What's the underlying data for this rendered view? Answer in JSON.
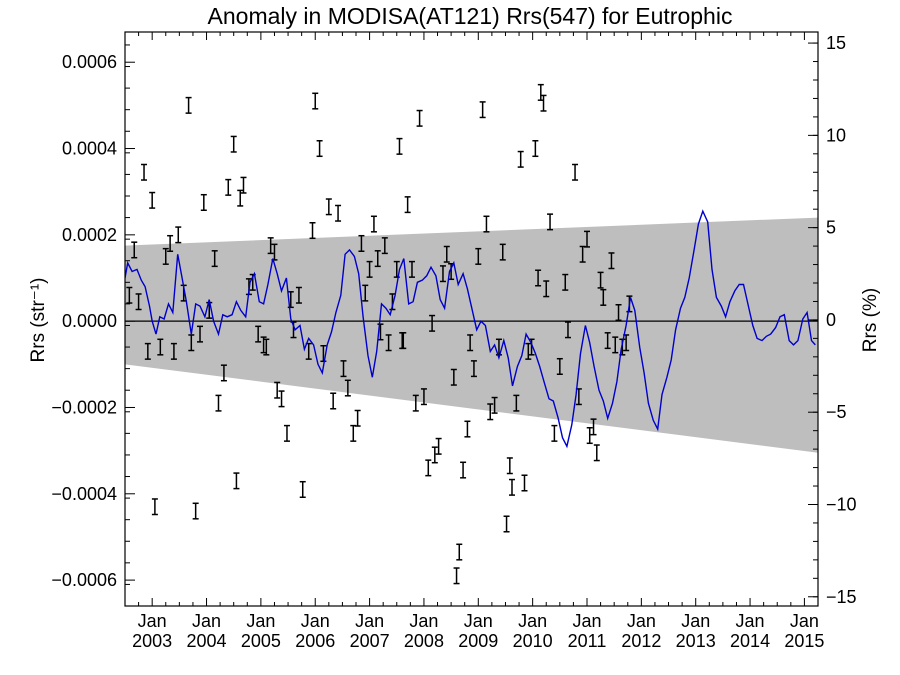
{
  "chart_data": {
    "type": "scatter",
    "title": "Anomaly in MODISA(AT121) Rrs(547) for Eutrophic",
    "ylabel_left": "Rrs (str⁻¹)",
    "ylabel_right": "Rrs (%)",
    "xlabel": "",
    "xlim": [
      2002.5,
      2015.25
    ],
    "ylim": [
      -0.00066,
      0.00067
    ],
    "ylim_right": [
      -15.5,
      15.6
    ],
    "grid": false,
    "legend": "none",
    "x_ticks": [
      {
        "x": 2003,
        "month": "Jan",
        "year": "2003"
      },
      {
        "x": 2004,
        "month": "Jan",
        "year": "2004"
      },
      {
        "x": 2005,
        "month": "Jan",
        "year": "2005"
      },
      {
        "x": 2006,
        "month": "Jan",
        "year": "2006"
      },
      {
        "x": 2007,
        "month": "Jan",
        "year": "2007"
      },
      {
        "x": 2008,
        "month": "Jan",
        "year": "2008"
      },
      {
        "x": 2009,
        "month": "Jan",
        "year": "2009"
      },
      {
        "x": 2010,
        "month": "Jan",
        "year": "2010"
      },
      {
        "x": 2011,
        "month": "Jan",
        "year": "2011"
      },
      {
        "x": 2012,
        "month": "Jan",
        "year": "2012"
      },
      {
        "x": 2013,
        "month": "Jan",
        "year": "2013"
      },
      {
        "x": 2014,
        "month": "Jan",
        "year": "2014"
      },
      {
        "x": 2015,
        "month": "Jan",
        "year": "2015"
      }
    ],
    "y_ticks_left": [
      {
        "v": 0.0006,
        "label": "0.0006"
      },
      {
        "v": 0.0004,
        "label": "0.0004"
      },
      {
        "v": 0.0002,
        "label": "0.0002"
      },
      {
        "v": 0.0,
        "label": "0.0000"
      },
      {
        "v": -0.0002,
        "label": "−0.0002"
      },
      {
        "v": -0.0004,
        "label": "−0.0004"
      },
      {
        "v": -0.0006,
        "label": "−0.0006"
      }
    ],
    "y_ticks_right": [
      {
        "v": 15,
        "label": "15"
      },
      {
        "v": 10,
        "label": "10"
      },
      {
        "v": 5,
        "label": "5"
      },
      {
        "v": 0,
        "label": "0"
      },
      {
        "v": -5,
        "label": "−5"
      },
      {
        "v": -10,
        "label": "−10"
      },
      {
        "v": -15,
        "label": "−15"
      }
    ],
    "band": {
      "x": [
        2002.5,
        2015.25
      ],
      "upper": [
        0.000175,
        0.00024
      ],
      "lower": [
        -0.0001,
        -0.000305
      ],
      "color": "#bebebe"
    },
    "zero_line": {
      "y": 0.0,
      "color": "#000000"
    },
    "error_bars": {
      "color": "#000000",
      "half_height": 1.8e-05,
      "points": [
        {
          "x": 2002.58,
          "y": 6e-05
        },
        {
          "x": 2002.67,
          "y": 0.000165
        },
        {
          "x": 2002.75,
          "y": 4.5e-05
        },
        {
          "x": 2002.85,
          "y": 0.000345
        },
        {
          "x": 2002.92,
          "y": -7e-05
        },
        {
          "x": 2003.0,
          "y": 0.00028
        },
        {
          "x": 2003.05,
          "y": -0.00043
        },
        {
          "x": 2003.15,
          "y": -6e-05
        },
        {
          "x": 2003.25,
          "y": 0.00015
        },
        {
          "x": 2003.33,
          "y": 0.00018
        },
        {
          "x": 2003.4,
          "y": -7e-05
        },
        {
          "x": 2003.48,
          "y": 0.0002
        },
        {
          "x": 2003.58,
          "y": 6.5e-05
        },
        {
          "x": 2003.67,
          "y": 0.0005
        },
        {
          "x": 2003.72,
          "y": -5e-05
        },
        {
          "x": 2003.8,
          "y": -0.00044
        },
        {
          "x": 2003.88,
          "y": -3e-05
        },
        {
          "x": 2003.95,
          "y": 0.000275
        },
        {
          "x": 2004.05,
          "y": 2.5e-05
        },
        {
          "x": 2004.15,
          "y": 0.000145
        },
        {
          "x": 2004.22,
          "y": -0.00019
        },
        {
          "x": 2004.32,
          "y": -0.00012
        },
        {
          "x": 2004.4,
          "y": 0.00031
        },
        {
          "x": 2004.5,
          "y": 0.00041
        },
        {
          "x": 2004.55,
          "y": -0.00037
        },
        {
          "x": 2004.62,
          "y": 0.000285
        },
        {
          "x": 2004.68,
          "y": 0.000315
        },
        {
          "x": 2004.78,
          "y": 8e-05
        },
        {
          "x": 2004.85,
          "y": 9e-05
        },
        {
          "x": 2004.95,
          "y": -3e-05
        },
        {
          "x": 2005.05,
          "y": -5.5e-05
        },
        {
          "x": 2005.1,
          "y": -6e-05
        },
        {
          "x": 2005.18,
          "y": 0.000175
        },
        {
          "x": 2005.25,
          "y": 0.00016
        },
        {
          "x": 2005.3,
          "y": -0.00016
        },
        {
          "x": 2005.38,
          "y": -0.00018
        },
        {
          "x": 2005.48,
          "y": -0.00026
        },
        {
          "x": 2005.55,
          "y": 5e-05
        },
        {
          "x": 2005.6,
          "y": -2e-05
        },
        {
          "x": 2005.7,
          "y": 6e-05
        },
        {
          "x": 2005.77,
          "y": -0.00039
        },
        {
          "x": 2005.88,
          "y": -7e-05
        },
        {
          "x": 2005.95,
          "y": 0.00021
        },
        {
          "x": 2006.0,
          "y": 0.00051
        },
        {
          "x": 2006.08,
          "y": 0.0004
        },
        {
          "x": 2006.15,
          "y": -7.5e-05
        },
        {
          "x": 2006.25,
          "y": 0.000265
        },
        {
          "x": 2006.33,
          "y": -0.000185
        },
        {
          "x": 2006.42,
          "y": 0.00025
        },
        {
          "x": 2006.52,
          "y": -0.00011
        },
        {
          "x": 2006.6,
          "y": -0.000155
        },
        {
          "x": 2006.7,
          "y": -0.00026
        },
        {
          "x": 2006.78,
          "y": -0.000225
        },
        {
          "x": 2006.85,
          "y": 0.00018
        },
        {
          "x": 2006.92,
          "y": 6.5e-05
        },
        {
          "x": 2007.0,
          "y": 0.00012
        },
        {
          "x": 2007.08,
          "y": 0.000225
        },
        {
          "x": 2007.15,
          "y": 0.000145
        },
        {
          "x": 2007.2,
          "y": -2.5e-05
        },
        {
          "x": 2007.28,
          "y": 0.000175
        },
        {
          "x": 2007.35,
          "y": -5e-05
        },
        {
          "x": 2007.42,
          "y": 4.5e-05
        },
        {
          "x": 2007.5,
          "y": 0.00012
        },
        {
          "x": 2007.55,
          "y": 0.000405
        },
        {
          "x": 2007.6,
          "y": -4.5e-05
        },
        {
          "x": 2007.62,
          "y": -4.5e-05
        },
        {
          "x": 2007.7,
          "y": 0.00027
        },
        {
          "x": 2007.78,
          "y": 0.00012
        },
        {
          "x": 2007.85,
          "y": -0.00019
        },
        {
          "x": 2007.92,
          "y": 0.00047
        },
        {
          "x": 2008.0,
          "y": -0.000175
        },
        {
          "x": 2008.08,
          "y": -0.00034
        },
        {
          "x": 2008.15,
          "y": -5e-06
        },
        {
          "x": 2008.2,
          "y": -0.00031
        },
        {
          "x": 2008.27,
          "y": -0.00029
        },
        {
          "x": 2008.35,
          "y": 0.00011
        },
        {
          "x": 2008.42,
          "y": 0.000155
        },
        {
          "x": 2008.5,
          "y": 0.000115
        },
        {
          "x": 2008.55,
          "y": -0.00013
        },
        {
          "x": 2008.6,
          "y": -0.00059
        },
        {
          "x": 2008.65,
          "y": -0.000535
        },
        {
          "x": 2008.72,
          "y": -0.000345
        },
        {
          "x": 2008.8,
          "y": -0.00025
        },
        {
          "x": 2008.85,
          "y": -5e-05
        },
        {
          "x": 2008.92,
          "y": -0.00011
        },
        {
          "x": 2009.0,
          "y": 0.00015
        },
        {
          "x": 2009.08,
          "y": 0.00049
        },
        {
          "x": 2009.15,
          "y": 0.000225
        },
        {
          "x": 2009.22,
          "y": -0.00021
        },
        {
          "x": 2009.3,
          "y": -0.000195
        },
        {
          "x": 2009.38,
          "y": -6e-05
        },
        {
          "x": 2009.45,
          "y": 0.00016
        },
        {
          "x": 2009.52,
          "y": -0.00047
        },
        {
          "x": 2009.58,
          "y": -0.000335
        },
        {
          "x": 2009.62,
          "y": -0.000385
        },
        {
          "x": 2009.7,
          "y": -0.00019
        },
        {
          "x": 2009.78,
          "y": 0.000375
        },
        {
          "x": 2009.85,
          "y": -0.000375
        },
        {
          "x": 2009.92,
          "y": -7e-05
        },
        {
          "x": 2009.98,
          "y": -6e-05
        },
        {
          "x": 2010.05,
          "y": 0.0004
        },
        {
          "x": 2010.1,
          "y": 0.0001
        },
        {
          "x": 2010.15,
          "y": 0.00053
        },
        {
          "x": 2010.2,
          "y": 0.000505
        },
        {
          "x": 2010.25,
          "y": 7.5e-05
        },
        {
          "x": 2010.32,
          "y": 0.00023
        },
        {
          "x": 2010.4,
          "y": -0.00026
        },
        {
          "x": 2010.5,
          "y": -0.000105
        },
        {
          "x": 2010.6,
          "y": 9e-05
        },
        {
          "x": 2010.65,
          "y": -2e-05
        },
        {
          "x": 2010.78,
          "y": 0.000345
        },
        {
          "x": 2010.85,
          "y": -0.000175
        },
        {
          "x": 2010.92,
          "y": 0.000155
        },
        {
          "x": 2011.0,
          "y": 0.00019
        },
        {
          "x": 2011.05,
          "y": -0.000265
        },
        {
          "x": 2011.12,
          "y": -0.000245
        },
        {
          "x": 2011.18,
          "y": -0.000305
        },
        {
          "x": 2011.25,
          "y": 9.5e-05
        },
        {
          "x": 2011.3,
          "y": 5.5e-05
        },
        {
          "x": 2011.38,
          "y": -4.5e-05
        },
        {
          "x": 2011.45,
          "y": 0.00014
        },
        {
          "x": 2011.52,
          "y": -5.5e-05
        },
        {
          "x": 2011.58,
          "y": 2e-05
        },
        {
          "x": 2011.65,
          "y": -6e-05
        },
        {
          "x": 2011.72,
          "y": -5e-05
        },
        {
          "x": 2011.78,
          "y": 4e-05
        }
      ]
    },
    "smoothed_series": {
      "color": "#0000cc",
      "x": [
        2002.5,
        2002.55,
        2002.63,
        2002.72,
        2002.8,
        2002.87,
        2002.95,
        2003.0,
        2003.07,
        2003.14,
        2003.22,
        2003.3,
        2003.38,
        2003.47,
        2003.55,
        2003.63,
        2003.72,
        2003.8,
        2003.88,
        2003.97,
        2004.05,
        2004.13,
        2004.22,
        2004.3,
        2004.38,
        2004.47,
        2004.55,
        2004.63,
        2004.72,
        2004.8,
        2004.88,
        2004.97,
        2005.05,
        2005.13,
        2005.22,
        2005.3,
        2005.38,
        2005.47,
        2005.55,
        2005.63,
        2005.72,
        2005.8,
        2005.88,
        2005.97,
        2006.05,
        2006.13,
        2006.22,
        2006.3,
        2006.38,
        2006.47,
        2006.55,
        2006.63,
        2006.72,
        2006.8,
        2006.88,
        2006.97,
        2007.05,
        2007.13,
        2007.22,
        2007.3,
        2007.38,
        2007.47,
        2007.55,
        2007.63,
        2007.72,
        2007.8,
        2007.88,
        2007.97,
        2008.05,
        2008.13,
        2008.22,
        2008.3,
        2008.38,
        2008.47,
        2008.55,
        2008.63,
        2008.72,
        2008.8,
        2008.88,
        2008.97,
        2009.05,
        2009.13,
        2009.22,
        2009.3,
        2009.38,
        2009.47,
        2009.55,
        2009.63,
        2009.72,
        2009.8,
        2009.88,
        2009.97,
        2010.05,
        2010.13,
        2010.22,
        2010.3,
        2010.38,
        2010.47,
        2010.55,
        2010.63,
        2010.72,
        2010.8,
        2010.88,
        2010.97,
        2011.05,
        2011.13,
        2011.22,
        2011.3,
        2011.38,
        2011.47,
        2011.55,
        2011.63,
        2011.72,
        2011.8,
        2011.88,
        2011.97,
        2012.05,
        2012.13,
        2012.22,
        2012.3,
        2012.38,
        2012.47,
        2012.55,
        2012.63,
        2012.72,
        2012.8,
        2012.88,
        2012.97,
        2013.05,
        2013.13,
        2013.22,
        2013.3,
        2013.38,
        2013.47,
        2013.55,
        2013.63,
        2013.72,
        2013.8,
        2013.88,
        2013.97,
        2014.05,
        2014.13,
        2014.22,
        2014.3,
        2014.38,
        2014.47,
        2014.55,
        2014.63,
        2014.72,
        2014.8,
        2014.88,
        2014.97,
        2015.05,
        2015.13,
        2015.2
      ],
      "y": [
        0.0001,
        0.000135,
        0.000115,
        0.00012,
        9.5e-05,
        8e-05,
        3.5e-05,
        0.0,
        -3e-05,
        1e-05,
        5e-06,
        4e-05,
        2e-05,
        0.000155,
        0.0001,
        4.5e-05,
        -3e-05,
        4e-05,
        3.5e-05,
        1e-05,
        5e-05,
        0.0,
        -3e-05,
        1.5e-05,
        1e-05,
        1.5e-05,
        4.5e-05,
        2.5e-05,
        1e-05,
        9e-05,
        0.00011,
        4.5e-05,
        4e-05,
        8.5e-05,
        0.000145,
        0.00011,
        7e-05,
        0.0001,
        5e-06,
        -2e-05,
        -1e-05,
        -6.5e-05,
        -4e-05,
        -5.5e-05,
        -0.0001,
        -0.00012,
        -5.5e-05,
        -2.5e-05,
        2e-05,
        6e-05,
        0.000155,
        0.000165,
        0.00015,
        0.00011,
        1e-05,
        -8e-05,
        -0.00013,
        -7e-05,
        4e-05,
        3e-05,
        1.5e-05,
        6e-05,
        0.00012,
        0.000145,
        4e-05,
        4.5e-05,
        9e-05,
        9.5e-05,
        0.000105,
        0.000125,
        0.000105,
        5e-05,
        3e-05,
        0.000115,
        0.000135,
        8.5e-05,
        0.00011,
        7.5e-05,
        3e-05,
        -2e-05,
        0.0,
        -1e-05,
        -7e-05,
        -5.5e-05,
        -8.5e-05,
        -4.5e-05,
        -8.5e-05,
        -0.00015,
        -0.000105,
        -8e-05,
        -3e-05,
        -5e-05,
        -7.5e-05,
        -0.000105,
        -0.000145,
        -0.00018,
        -0.000185,
        -0.000225,
        -0.00027,
        -0.00029,
        -0.00024,
        -0.00017,
        -7.5e-05,
        -1e-05,
        -5e-05,
        -0.000105,
        -0.00016,
        -0.000185,
        -0.000225,
        -0.00019,
        -0.00014,
        -6.5e-05,
        -1e-05,
        5.5e-05,
        2.5e-05,
        -6e-05,
        -0.00012,
        -0.00019,
        -0.00023,
        -0.00025,
        -0.00017,
        -0.00013,
        -9e-05,
        -2e-05,
        3e-05,
        5.5e-05,
        0.0001,
        0.000165,
        0.000225,
        0.000255,
        0.00023,
        0.00012,
        5.5e-05,
        3.5e-05,
        1e-05,
        4.5e-05,
        7e-05,
        8.5e-05,
        8.5e-05,
        3.5e-05,
        -1e-05,
        -4e-05,
        -4.5e-05,
        -3.5e-05,
        -3e-05,
        -1.5e-05,
        1e-05,
        1.5e-05,
        -4.5e-05,
        -5.5e-05,
        -4.5e-05,
        5e-06,
        2e-05,
        -4.5e-05,
        -5.5e-05
      ]
    }
  }
}
